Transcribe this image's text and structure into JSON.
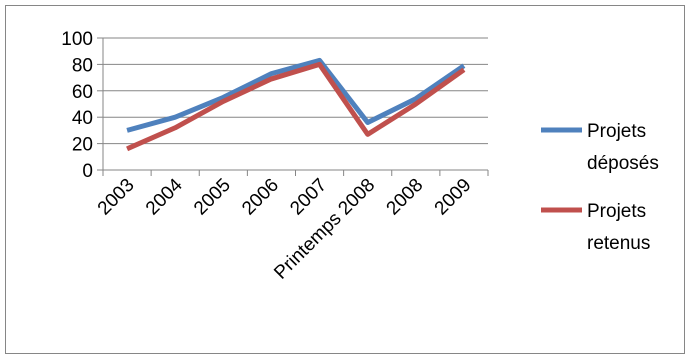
{
  "chart_data": {
    "type": "line",
    "categories": [
      "2003",
      "2004",
      "2005",
      "2006",
      "2007",
      "Printemps 2008",
      "2008",
      "2009"
    ],
    "series": [
      {
        "name": "Projets déposés",
        "legend_lines": [
          "Projets",
          "déposés"
        ],
        "values": [
          30,
          40,
          55,
          73,
          83,
          36,
          54,
          79
        ],
        "color": "#4F81BD"
      },
      {
        "name": "Projets retenus",
        "legend_lines": [
          "Projets",
          "retenus"
        ],
        "values": [
          16,
          32,
          52,
          69,
          80,
          27,
          50,
          76
        ],
        "color": "#C0504D"
      }
    ],
    "ylim": [
      0,
      100
    ],
    "yticks": [
      0,
      20,
      40,
      60,
      80,
      100
    ],
    "grid": true,
    "legend_position": "right",
    "title": "",
    "xlabel": "",
    "ylabel": ""
  }
}
